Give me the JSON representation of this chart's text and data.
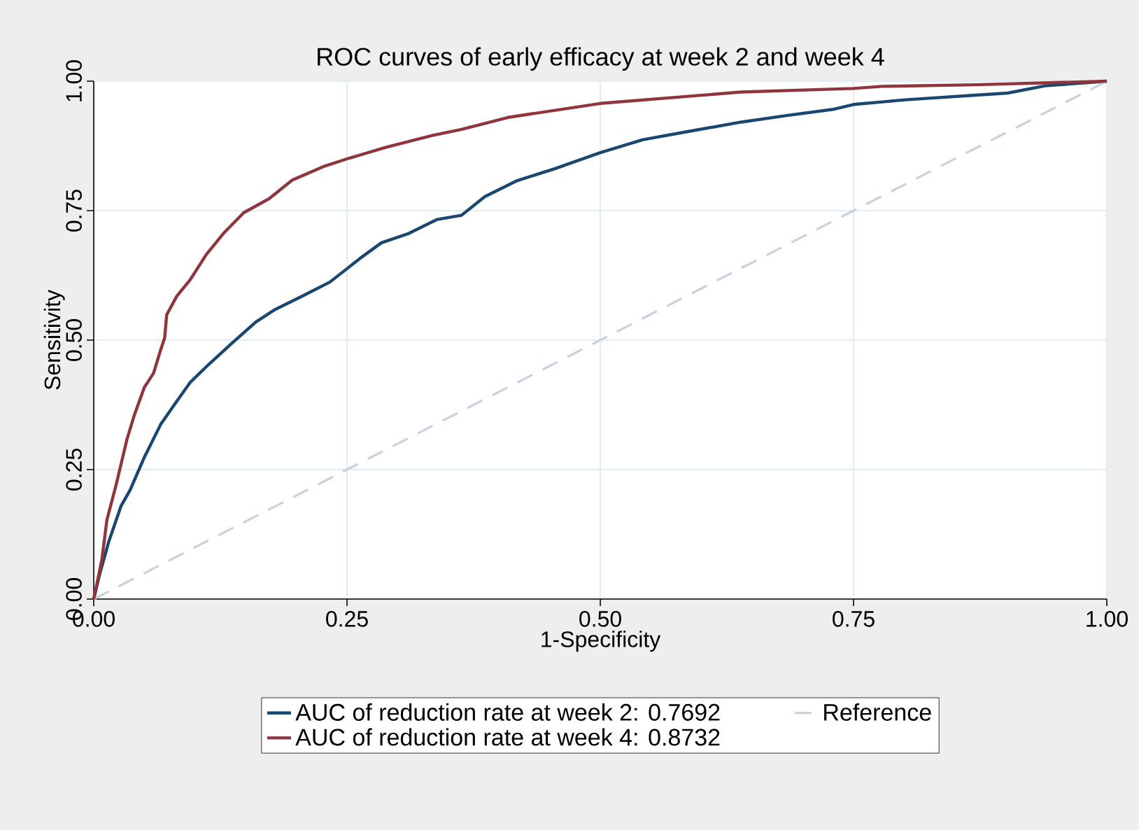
{
  "chart_data": {
    "type": "line",
    "title": "ROC curves of early efficacy at week 2 and week 4",
    "xlabel": "1-Specificity",
    "ylabel": "Sensitivity",
    "xlim": [
      0,
      1
    ],
    "ylim": [
      0,
      1
    ],
    "xticks": [
      {
        "value": 0,
        "label": "0.00"
      },
      {
        "value": 0.25,
        "label": "0.25"
      },
      {
        "value": 0.5,
        "label": "0.50"
      },
      {
        "value": 0.75,
        "label": "0.75"
      },
      {
        "value": 1,
        "label": "1.00"
      }
    ],
    "yticks": [
      {
        "value": 0,
        "label": "0.00"
      },
      {
        "value": 0.25,
        "label": "0.25"
      },
      {
        "value": 0.5,
        "label": "0.50"
      },
      {
        "value": 0.75,
        "label": "0.75"
      },
      {
        "value": 1,
        "label": "1.00"
      }
    ],
    "grid": true,
    "legend": "bottom",
    "marker": "none",
    "series": [
      {
        "name": "AUC of reduction rate at week 2: 0.7692",
        "color": "#1a476f",
        "line_style": "solid",
        "x": [
          0,
          0.006,
          0.015,
          0.027,
          0.036,
          0.05,
          0.066,
          0.082,
          0.095,
          0.114,
          0.137,
          0.16,
          0.178,
          0.206,
          0.233,
          0.25,
          0.265,
          0.284,
          0.311,
          0.339,
          0.363,
          0.386,
          0.418,
          0.455,
          0.5,
          0.542,
          0.593,
          0.639,
          0.685,
          0.731,
          0.75,
          0.801,
          0.87,
          0.902,
          0.939,
          1
        ],
        "values": [
          0,
          0.049,
          0.112,
          0.18,
          0.211,
          0.274,
          0.337,
          0.382,
          0.418,
          0.454,
          0.495,
          0.535,
          0.558,
          0.585,
          0.612,
          0.638,
          0.661,
          0.688,
          0.706,
          0.733,
          0.741,
          0.777,
          0.808,
          0.831,
          0.862,
          0.887,
          0.905,
          0.921,
          0.934,
          0.946,
          0.955,
          0.964,
          0.973,
          0.977,
          0.991,
          1
        ]
      },
      {
        "name": "Reference",
        "color": "#c9d0e0",
        "line_style": "dashed",
        "x": [
          0,
          1
        ],
        "values": [
          0,
          1
        ]
      },
      {
        "name": "AUC of reduction rate at week 4: 0.8732",
        "color": "#90353b",
        "line_style": "solid",
        "x": [
          0,
          0.008,
          0.013,
          0.022,
          0.033,
          0.04,
          0.05,
          0.059,
          0.066,
          0.07,
          0.072,
          0.082,
          0.095,
          0.111,
          0.128,
          0.148,
          0.173,
          0.196,
          0.228,
          0.25,
          0.288,
          0.334,
          0.363,
          0.409,
          0.5,
          0.639,
          0.75,
          0.778,
          0.87,
          1
        ],
        "values": [
          0,
          0.076,
          0.153,
          0.22,
          0.31,
          0.355,
          0.409,
          0.436,
          0.481,
          0.504,
          0.549,
          0.585,
          0.616,
          0.665,
          0.706,
          0.746,
          0.773,
          0.809,
          0.836,
          0.85,
          0.872,
          0.895,
          0.907,
          0.93,
          0.957,
          0.979,
          0.986,
          0.99,
          0.993,
          1
        ]
      }
    ]
  }
}
